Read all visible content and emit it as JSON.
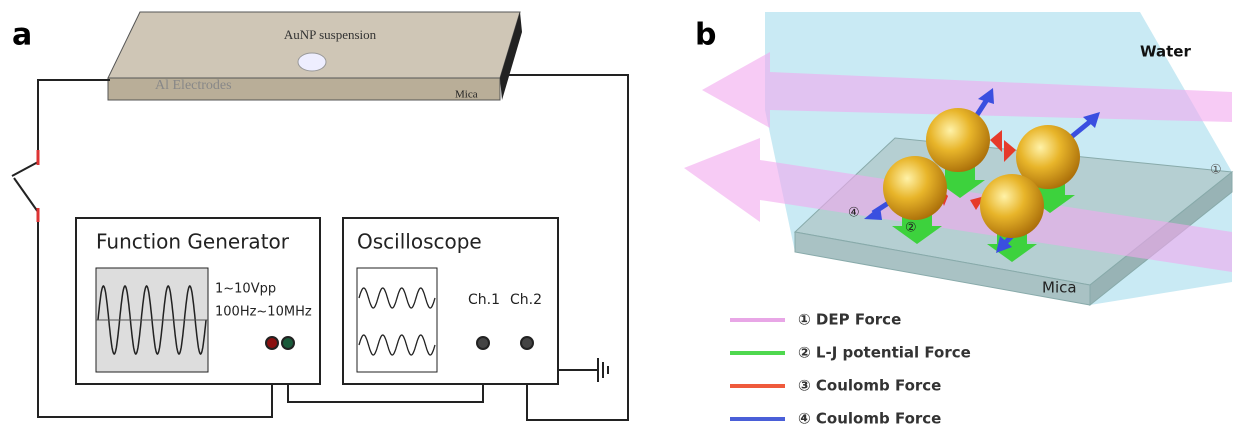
{
  "panels": [
    {
      "label": "a",
      "device": {
        "suspension": "AuNP suspension",
        "electrodes": "Al Electrodes",
        "substrate": "Mica"
      },
      "function_generator": {
        "title": "Function Generator",
        "amplitude": "1~10Vpp",
        "frequency": "100Hz~10MHz"
      },
      "oscilloscope": {
        "title": "Oscilloscope",
        "channels": [
          "Ch.1",
          "Ch.2"
        ]
      }
    },
    {
      "label": "b",
      "medium": "Water",
      "substrate": "Mica",
      "markers": [
        "①",
        "②",
        "④"
      ],
      "legend": [
        {
          "text": "① DEP Force",
          "color": "#e8a6e6"
        },
        {
          "text": "② L-J potential Force",
          "color": "#4fd84f"
        },
        {
          "text": "③ Coulomb Force",
          "color": "#ef5a3c"
        },
        {
          "text": "④ Coulomb Force",
          "color": "#4a5fd8"
        }
      ]
    }
  ]
}
